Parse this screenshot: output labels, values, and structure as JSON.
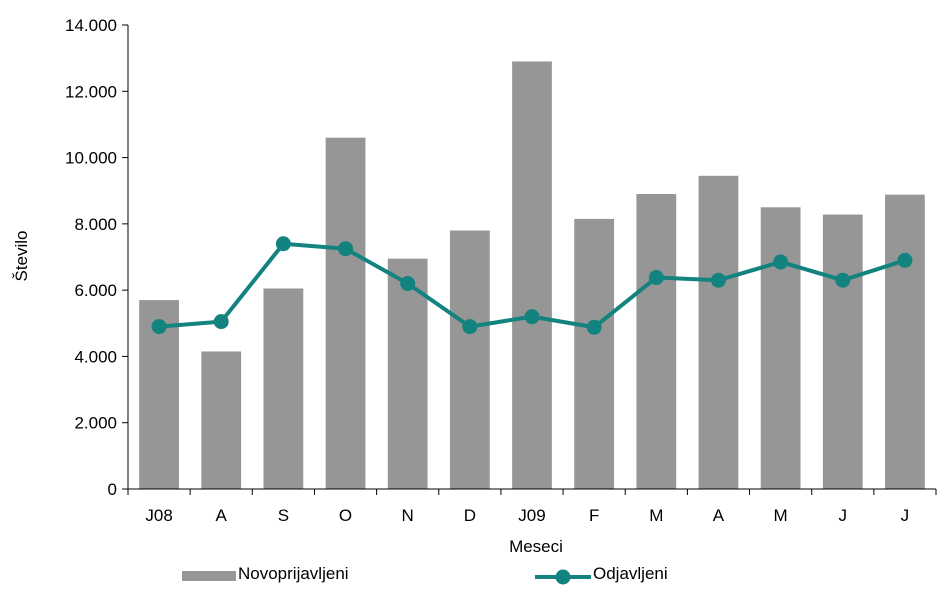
{
  "chart_data": {
    "type": "bar",
    "categories": [
      "J08",
      "A",
      "S",
      "O",
      "N",
      "D",
      "J09",
      "F",
      "M",
      "A",
      "M",
      "J",
      "J"
    ],
    "series": [
      {
        "name": "Novoprijavljeni",
        "type": "bar",
        "color": "#969696",
        "values": [
          5700,
          4150,
          6050,
          10600,
          6950,
          7800,
          12900,
          8150,
          8900,
          9450,
          8500,
          8280,
          8880
        ]
      },
      {
        "name": "Odjavljeni",
        "type": "line",
        "color": "#12837f",
        "values": [
          4900,
          5050,
          7400,
          7250,
          6200,
          4900,
          5200,
          4880,
          6380,
          6300,
          6850,
          6300,
          6900
        ]
      }
    ],
    "xlabel": "Meseci",
    "ylabel": "Število",
    "ylim": [
      0,
      14000
    ],
    "yticks": [
      0,
      2000,
      4000,
      6000,
      8000,
      10000,
      12000,
      14000
    ],
    "ytick_labels": [
      "0",
      "2.000",
      "4.000",
      "6.000",
      "8.000",
      "10.000",
      "12.000",
      "14.000"
    ],
    "grid": false,
    "legend_position": "bottom"
  }
}
